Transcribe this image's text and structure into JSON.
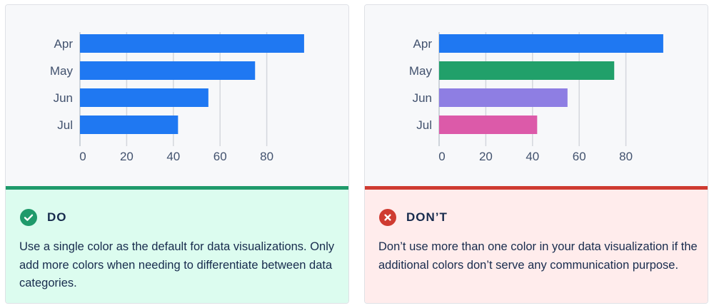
{
  "panels": [
    {
      "key": "do",
      "heading": "DO",
      "icon": "check-icon",
      "accent_color": "#1f9a6b",
      "panel_bg": "#dcfcef",
      "description": "Use a single color as the default for data visualizations. Only add more colors when needing to differentiate between data categories."
    },
    {
      "key": "dont",
      "heading": "DON’T",
      "icon": "cross-icon",
      "accent_color": "#cf3b31",
      "panel_bg": "#ffecec",
      "description": "Don’t use more than one color in your data visualization if the additional colors don’t serve any communication purpose."
    }
  ],
  "chart_data": [
    {
      "type": "bar",
      "orientation": "horizontal",
      "categories": [
        "Apr",
        "May",
        "Jun",
        "Jul"
      ],
      "values": [
        96,
        75,
        55,
        42
      ],
      "bar_colors": [
        "#1f78f2",
        "#1f78f2",
        "#1f78f2",
        "#1f78f2"
      ],
      "xticks": [
        0,
        20,
        40,
        60,
        80
      ],
      "xlim": [
        0,
        100
      ],
      "grid": true,
      "title": "",
      "xlabel": "",
      "ylabel": ""
    },
    {
      "type": "bar",
      "orientation": "horizontal",
      "categories": [
        "Apr",
        "May",
        "Jun",
        "Jul"
      ],
      "values": [
        96,
        75,
        55,
        42
      ],
      "bar_colors": [
        "#1f78f2",
        "#21a06a",
        "#8e7ee3",
        "#dc5aa9"
      ],
      "xticks": [
        0,
        20,
        40,
        60,
        80
      ],
      "xlim": [
        0,
        100
      ],
      "grid": true,
      "title": "",
      "xlabel": "",
      "ylabel": ""
    }
  ]
}
